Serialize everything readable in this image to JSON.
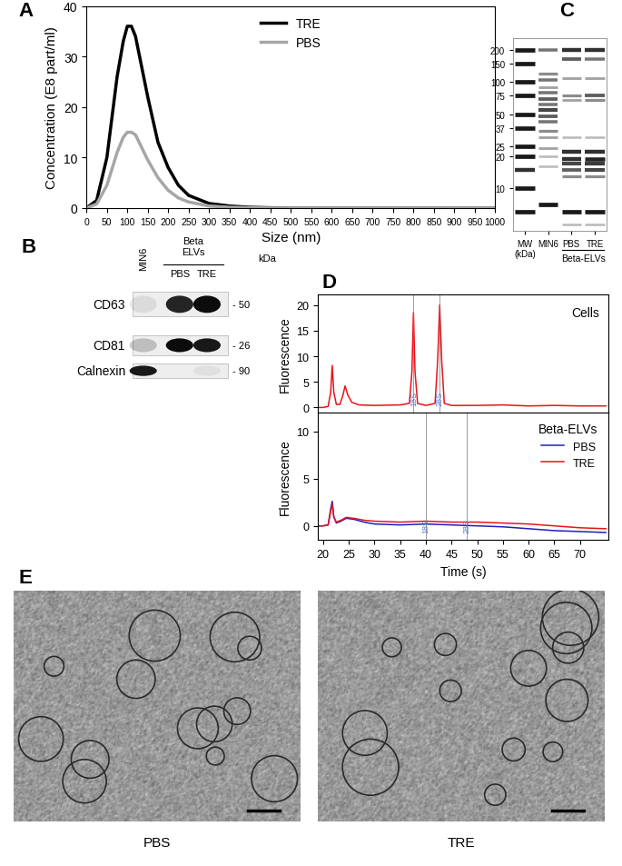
{
  "chart_data": [
    {
      "type": "line",
      "panel": "A",
      "xlabel": "Size (nm)",
      "ylabel": "Concentration (E8 part/ml)",
      "xlim": [
        0,
        1000
      ],
      "xticks": [
        0,
        50,
        100,
        150,
        200,
        250,
        300,
        350,
        400,
        450,
        500,
        550,
        600,
        650,
        700,
        750,
        800,
        850,
        900,
        950,
        1000
      ],
      "ylim": [
        0,
        40
      ],
      "yticks": [
        0,
        10,
        20,
        30,
        40
      ],
      "legend": "upper center",
      "x": [
        0,
        25,
        50,
        75,
        90,
        100,
        110,
        120,
        135,
        150,
        175,
        200,
        225,
        250,
        300,
        350,
        400,
        450,
        500,
        600,
        700,
        800,
        900,
        1000
      ],
      "series": [
        {
          "name": "TRE",
          "color": "#000000",
          "values": [
            0,
            1.5,
            10,
            26,
            33,
            36,
            36,
            34,
            28,
            22,
            13,
            8,
            4.5,
            2.5,
            0.9,
            0.4,
            0.15,
            0.05,
            0,
            0,
            0,
            0,
            0,
            0
          ]
        },
        {
          "name": "PBS",
          "color": "#a6a6a6",
          "values": [
            0,
            0.8,
            4.5,
            11,
            14,
            15,
            15,
            14.5,
            12,
            9.5,
            6,
            3.5,
            2,
            1.2,
            0.4,
            0.15,
            0.05,
            0,
            0,
            0,
            0,
            0,
            0,
            0
          ]
        }
      ]
    },
    {
      "type": "blot",
      "panel": "B",
      "lanes": [
        "MIN6",
        "PBS",
        "TRE"
      ],
      "group": {
        "label": "Beta\nELVs",
        "lanes": [
          "PBS",
          "TRE"
        ]
      },
      "unit_label": "kDa",
      "rows": [
        {
          "name": "CD63",
          "mw_label": "- 50",
          "intensity": [
            0.08,
            0.85,
            0.95
          ]
        },
        {
          "name": "CD81",
          "mw_label": "- 26",
          "intensity": [
            0.2,
            0.95,
            0.9
          ]
        },
        {
          "name": "Calnexin",
          "mw_label": "- 90",
          "intensity": [
            0.9,
            0.0,
            0.06
          ]
        }
      ]
    },
    {
      "type": "gel",
      "panel": "C",
      "categories": [
        "MW\n(kDa)",
        "MIN6",
        "PBS",
        "TRE"
      ],
      "group": {
        "label": "Beta-ELVs",
        "lanes": [
          "PBS",
          "TRE"
        ]
      },
      "log": "y",
      "ylim": [
        4,
        260
      ],
      "yticks": [
        200,
        150,
        100,
        75,
        50,
        37,
        25,
        20,
        10
      ],
      "bands": [
        [
          [
            200,
            1
          ],
          [
            150,
            1
          ],
          [
            100,
            1
          ],
          [
            75,
            1
          ],
          [
            50,
            1
          ],
          [
            37,
            1
          ],
          [
            25,
            1
          ],
          [
            20,
            1
          ],
          [
            15,
            0.9
          ],
          [
            10,
            1
          ],
          [
            6,
            1
          ]
        ],
        [
          [
            200,
            0.6
          ],
          [
            120,
            0.5
          ],
          [
            105,
            0.6
          ],
          [
            90,
            0.4
          ],
          [
            80,
            0.6
          ],
          [
            70,
            0.7
          ],
          [
            62,
            0.6
          ],
          [
            55,
            0.8
          ],
          [
            48,
            0.7
          ],
          [
            42,
            0.6
          ],
          [
            35,
            0.5
          ],
          [
            30,
            0.4
          ],
          [
            24,
            0.4
          ],
          [
            20,
            0.3
          ],
          [
            16,
            0.3
          ],
          [
            7,
            1
          ]
        ],
        [
          [
            200,
            0.9
          ],
          [
            165,
            0.7
          ],
          [
            110,
            0.4
          ],
          [
            75,
            0.5
          ],
          [
            68,
            0.4
          ],
          [
            30,
            0.3
          ],
          [
            22,
            0.9
          ],
          [
            19,
            0.9
          ],
          [
            17,
            0.8
          ],
          [
            15,
            0.7
          ],
          [
            13,
            0.5
          ],
          [
            6,
            1
          ],
          [
            4.6,
            0.3
          ]
        ],
        [
          [
            200,
            0.9
          ],
          [
            165,
            0.6
          ],
          [
            110,
            0.4
          ],
          [
            75,
            0.7
          ],
          [
            68,
            0.5
          ],
          [
            30,
            0.3
          ],
          [
            22,
            0.9
          ],
          [
            19,
            0.95
          ],
          [
            17,
            0.85
          ],
          [
            15,
            0.8
          ],
          [
            13,
            0.5
          ],
          [
            6,
            1
          ],
          [
            4.6,
            0.3
          ]
        ]
      ]
    },
    {
      "type": "line",
      "panel": "D",
      "title": "Cells",
      "ylabel": "Fluorescence",
      "xlim": [
        19,
        75.5
      ],
      "xticks": [
        20,
        25,
        30,
        35,
        40,
        45,
        50,
        55,
        60,
        65,
        70
      ],
      "ylim": [
        -1,
        22
      ],
      "yticks": [
        0,
        5,
        10,
        15,
        20
      ],
      "tick_labels": "y",
      "x": [
        19,
        20,
        21,
        21.5,
        21.8,
        22.1,
        22.6,
        23.3,
        23.9,
        24.3,
        24.8,
        25.6,
        27,
        30,
        35,
        36.8,
        37.3,
        37.6,
        37.9,
        38.4,
        40,
        41.8,
        42.3,
        42.7,
        43.1,
        43.6,
        45,
        50,
        55,
        60,
        65,
        70,
        75
      ],
      "series": [
        {
          "color": "#e8141b",
          "values": [
            0,
            0,
            0.2,
            3,
            8.2,
            3,
            0.6,
            0.6,
            2.5,
            4.2,
            2.5,
            1,
            0.5,
            0.4,
            0.5,
            0.8,
            7,
            18.5,
            7,
            0.8,
            0.4,
            0.8,
            9,
            20,
            9,
            0.8,
            0.4,
            0.4,
            0.5,
            0.3,
            0.4,
            0.3,
            0.3
          ]
        }
      ],
      "annotations": [
        {
          "text": "18S",
          "x": 37.6
        },
        {
          "text": "28S",
          "x": 42.7
        }
      ]
    },
    {
      "type": "line",
      "title": "Beta-ELVs",
      "xlabel": "Time (s)",
      "ylabel": "Fluorescence",
      "xlim": [
        19,
        75.5
      ],
      "xticks": [
        20,
        25,
        30,
        35,
        40,
        45,
        50,
        55,
        60,
        65,
        70
      ],
      "ylim": [
        -1.5,
        12
      ],
      "yticks": [
        0,
        5,
        10
      ],
      "legend": "upper right",
      "x": [
        19,
        20,
        21,
        21.5,
        21.8,
        22.1,
        22.6,
        23.5,
        24.5,
        26,
        28,
        30,
        35,
        40,
        45,
        50,
        55,
        60,
        65,
        70,
        75
      ],
      "series": [
        {
          "name": "PBS",
          "color": "#1f1fbf",
          "values": [
            0,
            0,
            0.1,
            1.8,
            2.6,
            1,
            0.3,
            0.5,
            0.8,
            0.7,
            0.4,
            0.2,
            0.1,
            0.2,
            0.1,
            0,
            -0.1,
            -0.3,
            -0.5,
            -0.6,
            -0.7
          ]
        },
        {
          "name": "TRE",
          "color": "#e8141b",
          "values": [
            0,
            0,
            0.1,
            1.5,
            2.3,
            0.9,
            0.4,
            0.6,
            0.9,
            0.8,
            0.6,
            0.5,
            0.4,
            0.5,
            0.4,
            0.4,
            0.3,
            0.2,
            0,
            -0.2,
            -0.3
          ]
        }
      ],
      "annotations": [
        {
          "text": "18S",
          "x": 40
        },
        {
          "text": "28S",
          "x": 48
        }
      ]
    },
    {
      "type": "image",
      "panel": "E",
      "categories": [
        "PBS",
        "TRE"
      ],
      "tick_labels": false
    }
  ]
}
